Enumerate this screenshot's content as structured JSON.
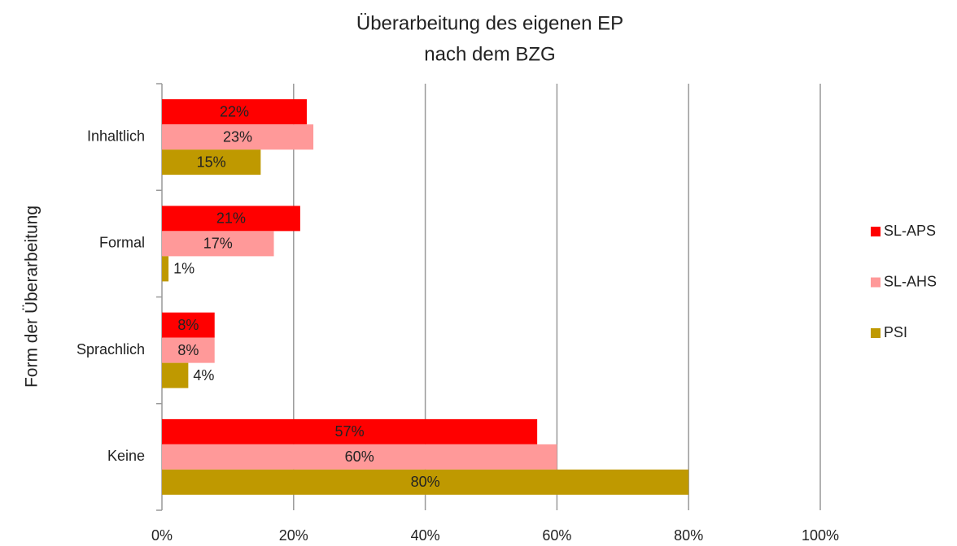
{
  "chart_data": {
    "type": "hbar",
    "title": [
      "Überarbeitung des eigenen EP",
      "nach dem BZG"
    ],
    "y_label": "Form der Überarbeitung",
    "categories": [
      "Inhaltlich",
      "Formal",
      "Sprachlich",
      "Keine"
    ],
    "series": [
      {
        "name": "SL-APS",
        "color": "#ff0000",
        "label_color": "#ffffff",
        "values": [
          22,
          21,
          8,
          57
        ],
        "value_labels": [
          "22%",
          "21%",
          "8%",
          "57%"
        ]
      },
      {
        "name": "SL-AHS",
        "color": "#ff9999",
        "label_color": "#222222",
        "values": [
          23,
          17,
          8,
          60
        ],
        "value_labels": [
          "23%",
          "17%",
          "8%",
          "60%"
        ]
      },
      {
        "name": "PSI",
        "color": "#bf9900",
        "label_color": "#222222",
        "values": [
          15,
          1,
          4,
          80
        ],
        "value_labels": [
          "15%",
          "1%",
          "4%",
          "80%"
        ]
      }
    ],
    "xlim": [
      0,
      100
    ],
    "xticks": [
      {
        "value": 0,
        "label": "0%"
      },
      {
        "value": 20,
        "label": "20%"
      },
      {
        "value": 40,
        "label": "40%"
      },
      {
        "value": 60,
        "label": "60%"
      },
      {
        "value": 80,
        "label": "80%"
      },
      {
        "value": 100,
        "label": "100%"
      }
    ],
    "grid": true,
    "legend": "right"
  }
}
